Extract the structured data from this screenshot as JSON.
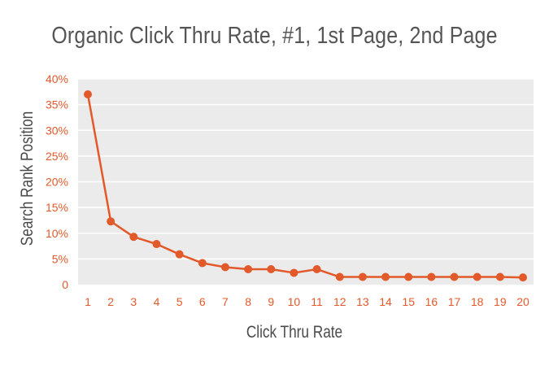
{
  "chart_data": {
    "type": "line",
    "title": "Organic Click Thru Rate, #1, 1st Page, 2nd Page",
    "xlabel": "Click Thru Rate",
    "ylabel": "Search Rank Position",
    "x": [
      1,
      2,
      3,
      4,
      5,
      6,
      7,
      8,
      9,
      10,
      11,
      12,
      13,
      14,
      15,
      16,
      17,
      18,
      19,
      20
    ],
    "y_tick_labels": [
      "0",
      "5%",
      "10%",
      "15%",
      "20%",
      "25%",
      "30%",
      "35%",
      "40%"
    ],
    "y_ticks": [
      0,
      5,
      10,
      15,
      20,
      25,
      30,
      35,
      40
    ],
    "ylim": [
      0,
      40
    ],
    "series": [
      {
        "values": [
          37,
          12.3,
          9.3,
          7.9,
          5.9,
          4.2,
          3.4,
          3.0,
          3.0,
          2.3,
          3.0,
          1.5,
          1.5,
          1.5,
          1.5,
          1.5,
          1.5,
          1.5,
          1.5,
          1.4
        ]
      }
    ],
    "grid": true,
    "colors": {
      "line": "#e2592a",
      "tick_text": "#e2592a",
      "plot_background": "#ebebeb",
      "gridline": "#ffffff"
    }
  }
}
